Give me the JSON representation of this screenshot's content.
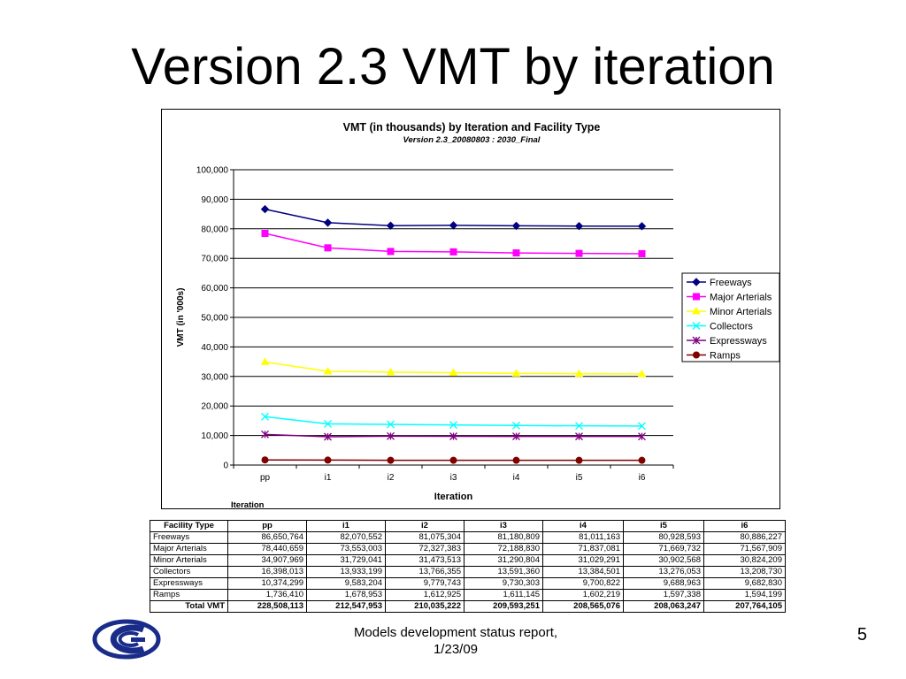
{
  "slide": {
    "title": "Version 2.3 VMT by iteration",
    "footer_line1": "Models development status report,",
    "footer_line2": "1/23/09",
    "page_number": "5"
  },
  "chart_data": {
    "type": "line",
    "title": "VMT (in thousands) by Iteration and Facility Type",
    "subtitle": "Version 2.3_20080803 : 2030_Final",
    "xlabel": "Iteration",
    "ylabel": "VMT (in '000s)",
    "extra_label": "Iteration",
    "categories": [
      "pp",
      "i1",
      "i2",
      "i3",
      "i4",
      "i5",
      "i6"
    ],
    "ylim": [
      0,
      100000
    ],
    "yticks": [
      "0",
      "10,000",
      "20,000",
      "30,000",
      "40,000",
      "50,000",
      "60,000",
      "70,000",
      "80,000",
      "90,000",
      "100,000"
    ],
    "grid": true,
    "legend_position": "right",
    "series": [
      {
        "name": "Freeways",
        "color": "#000080",
        "marker": "diamond",
        "values": [
          86650.764,
          82070.552,
          81075.304,
          81180.809,
          81011.163,
          80928.593,
          80886.227
        ]
      },
      {
        "name": "Major Arterials",
        "color": "#ff00ff",
        "marker": "square",
        "values": [
          78440.659,
          73553.003,
          72327.383,
          72188.83,
          71837.081,
          71669.732,
          71567.909
        ]
      },
      {
        "name": "Minor Arterials",
        "color": "#ffff00",
        "marker": "triangle",
        "values": [
          34907.969,
          31729.041,
          31473.513,
          31290.804,
          31029.291,
          30902.568,
          30824.209
        ]
      },
      {
        "name": "Collectors",
        "color": "#00ffff",
        "marker": "x",
        "values": [
          16398.013,
          13933.199,
          13766.355,
          13591.36,
          13384.501,
          13276.053,
          13208.73
        ]
      },
      {
        "name": "Expressways",
        "color": "#800080",
        "marker": "star",
        "values": [
          10374.299,
          9583.204,
          9779.743,
          9730.303,
          9700.822,
          9688.963,
          9682.83
        ]
      },
      {
        "name": "Ramps",
        "color": "#800000",
        "marker": "circle",
        "values": [
          1736.41,
          1678.953,
          1612.925,
          1611.145,
          1602.219,
          1597.338,
          1594.199
        ]
      }
    ]
  },
  "table": {
    "header": [
      "Facility Type",
      "pp",
      "i1",
      "i2",
      "i3",
      "i4",
      "i5",
      "i6"
    ],
    "rows": [
      [
        "Freeways",
        "86,650,764",
        "82,070,552",
        "81,075,304",
        "81,180,809",
        "81,011,163",
        "80,928,593",
        "80,886,227"
      ],
      [
        "Major Arterials",
        "78,440,659",
        "73,553,003",
        "72,327,383",
        "72,188,830",
        "71,837,081",
        "71,669,732",
        "71,567,909"
      ],
      [
        "Minor Arterials",
        "34,907,969",
        "31,729,041",
        "31,473,513",
        "31,290,804",
        "31,029,291",
        "30,902,568",
        "30,824,209"
      ],
      [
        "Collectors",
        "16,398,013",
        "13,933,199",
        "13,766,355",
        "13,591,360",
        "13,384,501",
        "13,276,053",
        "13,208,730"
      ],
      [
        "Expressways",
        "10,374,299",
        "9,583,204",
        "9,779,743",
        "9,730,303",
        "9,700,822",
        "9,688,963",
        "9,682,830"
      ],
      [
        "Ramps",
        "1,736,410",
        "1,678,953",
        "1,612,925",
        "1,611,145",
        "1,602,219",
        "1,597,338",
        "1,594,199"
      ]
    ],
    "total": [
      "Total VMT",
      "228,508,113",
      "212,547,953",
      "210,035,222",
      "209,593,251",
      "208,565,076",
      "208,063,247",
      "207,764,105"
    ]
  },
  "logo": {
    "icon": "company-logo-icon",
    "color": "#1a2c8a"
  }
}
